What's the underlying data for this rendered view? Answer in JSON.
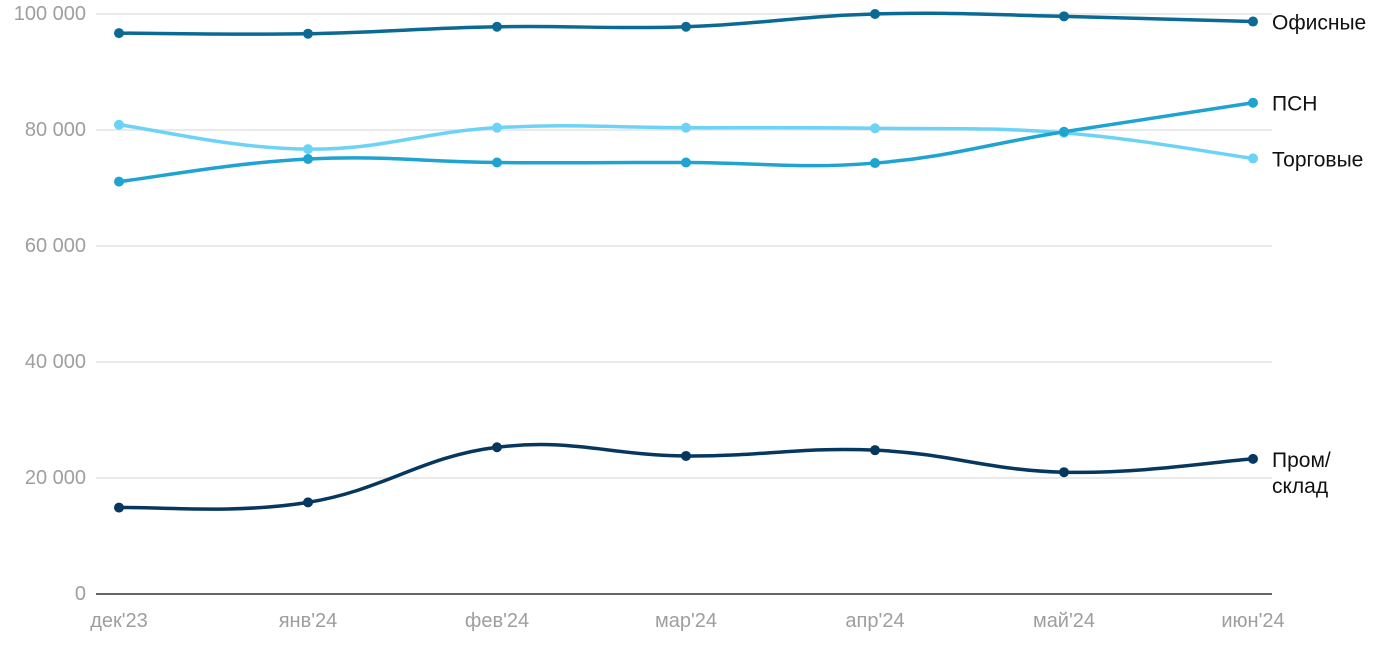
{
  "chart_data": {
    "type": "line",
    "categories": [
      "дек'23",
      "янв'24",
      "фев'24",
      "мар'24",
      "апр'24",
      "май'24",
      "июн'24"
    ],
    "ylim": [
      0,
      100000
    ],
    "yticks": [
      0,
      20000,
      40000,
      60000,
      80000,
      100000
    ],
    "ytick_labels": [
      "0",
      "20 000",
      "40 000",
      "60 000",
      "80 000",
      "100 000"
    ],
    "grid": true,
    "legend": "inline-right",
    "series": [
      {
        "name": "Офисные",
        "label_lines": [
          "Офисные"
        ],
        "color": "#0b6a93",
        "values": [
          96700,
          96600,
          97800,
          97800,
          100000,
          99600,
          98700
        ]
      },
      {
        "name": "ПСН",
        "label_lines": [
          "ПСН"
        ],
        "color": "#1fa3d1",
        "values": [
          71100,
          75000,
          74400,
          74400,
          74300,
          79700,
          84700
        ]
      },
      {
        "name": "Торговые",
        "label_lines": [
          "Торговые"
        ],
        "color": "#6dd3f6",
        "values": [
          80900,
          76700,
          80400,
          80400,
          80300,
          79500,
          75100
        ]
      },
      {
        "name": "Пром/ склад",
        "label_lines": [
          "Пром/",
          "склад"
        ],
        "color": "#06385f",
        "values": [
          14900,
          15800,
          25300,
          23800,
          24800,
          21000,
          23300
        ]
      }
    ]
  }
}
